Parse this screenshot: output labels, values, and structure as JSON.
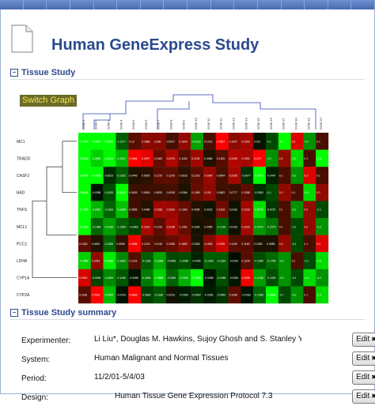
{
  "app": {
    "title": "Human GeneExpress Study"
  },
  "tissue_study": {
    "heading": "Tissue Study",
    "switch_label": "Switch Graph"
  },
  "summary": {
    "heading": "Tissue Study summary",
    "rows": [
      {
        "label": "Experimenter:",
        "value": "Li Liu*,  Douglas M. Hawkins,  Sujoy Ghosh  and  S. Stanley Y",
        "edit": "Edit"
      },
      {
        "label": "System:",
        "value": "Human Malignant and Normal Tissues",
        "edit": "Edit"
      },
      {
        "label": "Period:",
        "value": "11/2/01-5/4/03",
        "edit": "Edit"
      },
      {
        "label": "Design:",
        "value": "Human Tissue Gene Expression Protocol 7.3",
        "edit": "Edit"
      }
    ]
  },
  "chart_data": {
    "type": "heatmap",
    "rows": [
      "MC1",
      "TRADD",
      "CASF2",
      "BAD",
      "TNFS",
      "MCL1",
      "PCC1",
      "LDHA",
      "CYP1A",
      "CYP2A"
    ],
    "columns": [
      "GSM 1",
      "GSM 2",
      "GSM 3",
      "GSM 4",
      "GSM 5",
      "GSM 6",
      "GSM 7",
      "GSM 8",
      "GSM 9",
      "GSM 10",
      "GSM 11",
      "GSM 12",
      "GSM 13",
      "GSM 14",
      "GSM 15",
      "GSM 16",
      "GSM 17",
      "GSM 18",
      "GSM 19",
      "GSM 20"
    ],
    "values": [
      [
        -1.7083,
        -0.8894,
        -0.3693,
        -0.1277,
        0.12,
        0.1888,
        0.188,
        0.0937,
        0.1994,
        -0.2216,
        0.1022,
        0.4557,
        0.1937,
        0.2263,
        0.011,
        -0.1,
        -0.4,
        0.3,
        -0.2,
        0.1
      ],
      [
        -0.9988,
        -0.2883,
        -0.3413,
        -0.2467,
        0.4066,
        0.3097,
        0.1383,
        0.2376,
        0.1183,
        0.2189,
        0.0486,
        0.1183,
        0.2455,
        0.2282,
        0.375,
        -0.2,
        0.2,
        -0.3,
        0.1,
        -0.4
      ],
      [
        -0.6268,
        -0.4628,
        -0.0623,
        -0.1302,
        0.0449,
        0.0605,
        0.1275,
        0.1243,
        0.0633,
        0.1263,
        0.2069,
        0.0994,
        0.2265,
        -0.0677,
        -0.3767,
        -0.0447,
        0.1,
        -0.2,
        0.3,
        0.1
      ],
      [
        -0.8883,
        -0.0288,
        -0.1083,
        -0.3883,
        0.0833,
        0.0805,
        0.0833,
        0.0938,
        0.0386,
        0.1389,
        0.193,
        0.0883,
        0.0777,
        0.1288,
        -0.0583,
        -0.1,
        0.2,
        0.1,
        -0.3,
        0.2
      ],
      [
        -0.7288,
        -0.2483,
        -0.1383,
        -0.2668,
        0.0855,
        0.0485,
        0.2188,
        0.2083,
        0.1383,
        0.0485,
        0.0233,
        0.1518,
        0.0183,
        0.2233,
        -0.3075,
        -0.0787,
        0.1,
        -0.2,
        0.2,
        -0.1
      ],
      [
        -0.4283,
        -0.1388,
        -0.2188,
        -0.1356,
        -0.0883,
        0.2316,
        0.1233,
        0.2338,
        0.1381,
        0.0283,
        0.0485,
        -0.1318,
        0.0183,
        0.2233,
        -0.2075,
        -0.1575,
        0.1,
        -0.1,
        0.2,
        -0.2
      ],
      [
        0.1283,
        0.0455,
        -0.1388,
        0.0685,
        0.3385,
        0.1233,
        0.1018,
        0.1388,
        0.1883,
        0.0383,
        0.1838,
        0.2755,
        0.1189,
        0.1183,
        0.0383,
        0.0385,
        0.2,
        -0.1,
        0.1,
        0.3
      ],
      [
        -0.2888,
        0.1993,
        -0.3283,
        -0.1883,
        0.1133,
        -0.1283,
        -0.2288,
        -0.0988,
        -0.1088,
        -0.0485,
        -0.1283,
        -0.1283,
        -0.0183,
        0.1225,
        -0.1088,
        -0.1455,
        -0.2,
        0.1,
        -0.1,
        -0.3
      ],
      [
        0.2942,
        -0.0938,
        -0.1883,
        -0.1188,
        -0.0288,
        -0.1683,
        -0.2888,
        -0.1355,
        -0.2368,
        -0.3888,
        -0.0288,
        -0.1088,
        -0.0286,
        0.3288,
        -0.2188,
        -0.1083,
        -0.2,
        -0.1,
        -0.3,
        -0.2
      ],
      [
        0.1188,
        0.7833,
        -0.2583,
        -0.0233,
        0.6883,
        -0.0883,
        -0.1188,
        0.0233,
        -0.0383,
        -0.0683,
        -0.0383,
        -0.0683,
        0.1288,
        -0.0283,
        -0.1388,
        -0.3588,
        -0.1,
        -0.2,
        0.1,
        -0.3
      ]
    ],
    "colors": {
      "low": "#00ff00",
      "mid": "#000000",
      "high": "#ff0000"
    }
  }
}
